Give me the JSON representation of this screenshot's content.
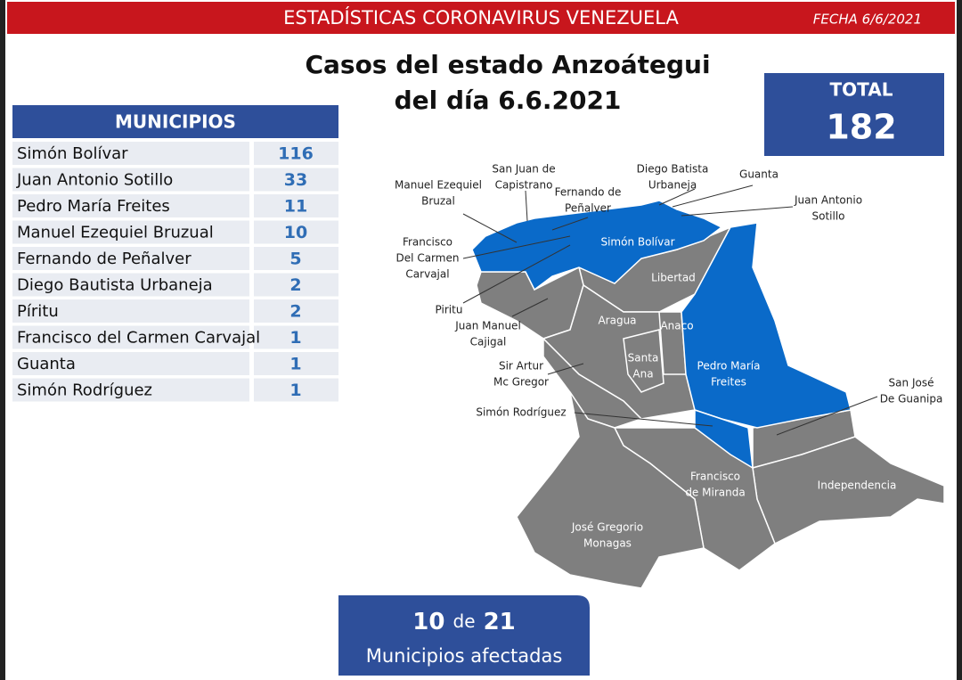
{
  "header": {
    "title": "ESTADÍSTICAS CORONAVIRUS VENEZUELA",
    "date": "FECHA 6/6/2021"
  },
  "heading": [
    "Casos del estado Anzoátegui",
    "del día 6.6.2021"
  ],
  "total": {
    "label": "TOTAL",
    "value": 182
  },
  "table": {
    "header": "MUNICIPIOS",
    "rows": [
      [
        "Simón Bolívar",
        116
      ],
      [
        "Juan Antonio Sotillo",
        33
      ],
      [
        "Pedro María Freites",
        11
      ],
      [
        "Manuel Ezequiel Bruzual",
        10
      ],
      [
        "Fernando de Peñalver",
        5
      ],
      [
        "Diego Bautista Urbaneja",
        2
      ],
      [
        "Píritu",
        2
      ],
      [
        "Francisco del Carmen Carvajal",
        1
      ],
      [
        "Guanta",
        1
      ],
      [
        "Simón Rodríguez",
        1
      ]
    ]
  },
  "map": {
    "labels": [
      {
        "lines": [
          "San Juan de",
          "Capistrano"
        ]
      },
      {
        "lines": [
          "Manuel Ezequiel",
          "Bruzal"
        ]
      },
      {
        "lines": [
          "Fernando de",
          "Peñalver"
        ]
      },
      {
        "lines": [
          "Diego Batista",
          "Urbaneja"
        ]
      },
      {
        "lines": [
          "Guanta"
        ]
      },
      {
        "lines": [
          "Juan Antonio",
          "Sotillo"
        ]
      },
      {
        "lines": [
          "Simón Bolívar"
        ]
      },
      {
        "lines": [
          "Francisco",
          "Del Carmen",
          "Carvajal"
        ]
      },
      {
        "lines": [
          "Libertad"
        ]
      },
      {
        "lines": [
          "Piritu"
        ]
      },
      {
        "lines": [
          "Aragua"
        ]
      },
      {
        "lines": [
          "Anaco"
        ]
      },
      {
        "lines": [
          "Juan Manuel",
          "Cajigal"
        ]
      },
      {
        "lines": [
          "Santa",
          "Ana"
        ]
      },
      {
        "lines": [
          "Sir Artur",
          "Mc Gregor"
        ]
      },
      {
        "lines": [
          "Pedro María",
          "Freites"
        ]
      },
      {
        "lines": [
          "San José",
          "De Guanipa"
        ]
      },
      {
        "lines": [
          "Simón Rodríguez"
        ]
      },
      {
        "lines": [
          "Francisco",
          "de Miranda"
        ]
      },
      {
        "lines": [
          "Independencia"
        ]
      },
      {
        "lines": [
          "José Gregorio",
          "Monagas"
        ]
      }
    ]
  },
  "summary": {
    "affected": 10,
    "of": "de",
    "total": 21,
    "caption": "Municipios afectadas"
  }
}
